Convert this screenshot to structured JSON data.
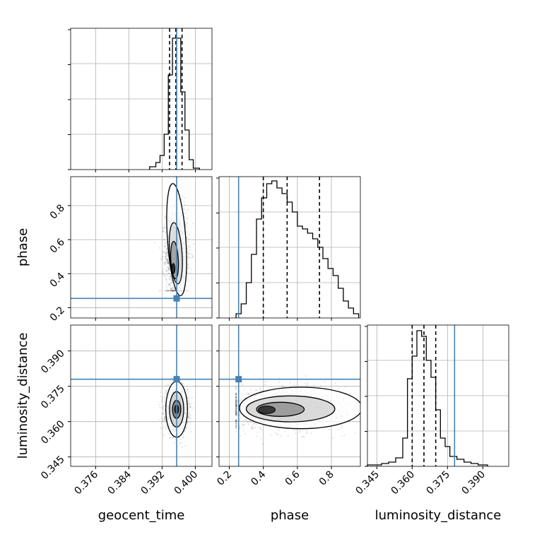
{
  "chart_data": {
    "type": "corner",
    "parameters": [
      {
        "key": "geocent_time",
        "label": "geocent_time",
        "range": [
          0.37,
          0.404
        ],
        "ticks": [
          0.376,
          0.384,
          0.392,
          0.4
        ],
        "tick_labels": [
          "0.376",
          "0.384",
          "0.392",
          "0.400"
        ],
        "truth": 0.3955,
        "quantiles": [
          0.3938,
          0.3953,
          0.3968
        ]
      },
      {
        "key": "phase",
        "label": "phase",
        "range": [
          0.14,
          0.97
        ],
        "ticks": [
          0.2,
          0.4,
          0.6,
          0.8
        ],
        "tick_labels": [
          "0.2",
          "0.4",
          "0.6",
          "0.8"
        ],
        "truth": 0.255,
        "quantiles": [
          0.4,
          0.54,
          0.73
        ]
      },
      {
        "key": "luminosity_distance",
        "label": "luminosity_distance",
        "range": [
          0.341,
          0.401
        ],
        "ticks": [
          0.345,
          0.36,
          0.375,
          0.39
        ],
        "tick_labels": [
          "0.345",
          "0.360",
          "0.375",
          "0.390"
        ],
        "truth": 0.378,
        "quantiles": [
          0.36,
          0.365,
          0.37
        ]
      }
    ],
    "histograms": [
      {
        "param": "geocent_time",
        "edges": [
          0.389,
          0.3905,
          0.3915,
          0.3925,
          0.3935,
          0.3945,
          0.3955,
          0.3965,
          0.3975,
          0.3985,
          0.3995,
          0.401
        ],
        "counts": [
          0.02,
          0.05,
          0.1,
          0.25,
          0.67,
          0.93,
          0.93,
          0.55,
          0.28,
          0.07,
          0.01
        ]
      },
      {
        "param": "phase",
        "edges": [
          0.24,
          0.27,
          0.3,
          0.33,
          0.36,
          0.39,
          0.42,
          0.45,
          0.48,
          0.51,
          0.54,
          0.57,
          0.6,
          0.63,
          0.66,
          0.69,
          0.72,
          0.75,
          0.78,
          0.81,
          0.84,
          0.87,
          0.9,
          0.93,
          0.96
        ],
        "counts": [
          0.03,
          0.1,
          0.25,
          0.45,
          0.7,
          0.85,
          0.95,
          0.97,
          0.92,
          0.88,
          0.82,
          0.75,
          0.65,
          0.63,
          0.6,
          0.56,
          0.5,
          0.42,
          0.35,
          0.3,
          0.21,
          0.12,
          0.07,
          0.03
        ]
      },
      {
        "param": "luminosity_distance",
        "edges": [
          0.341,
          0.344,
          0.347,
          0.35,
          0.353,
          0.356,
          0.358,
          0.36,
          0.362,
          0.364,
          0.366,
          0.368,
          0.37,
          0.372,
          0.374,
          0.376,
          0.379,
          0.382,
          0.385,
          0.388,
          0.392
        ],
        "counts": [
          0.01,
          0.01,
          0.02,
          0.03,
          0.06,
          0.2,
          0.62,
          0.78,
          0.96,
          0.92,
          0.75,
          0.63,
          0.4,
          0.2,
          0.14,
          0.07,
          0.05,
          0.03,
          0.02,
          0.01
        ]
      }
    ],
    "truths_marked": true,
    "grid": true
  }
}
